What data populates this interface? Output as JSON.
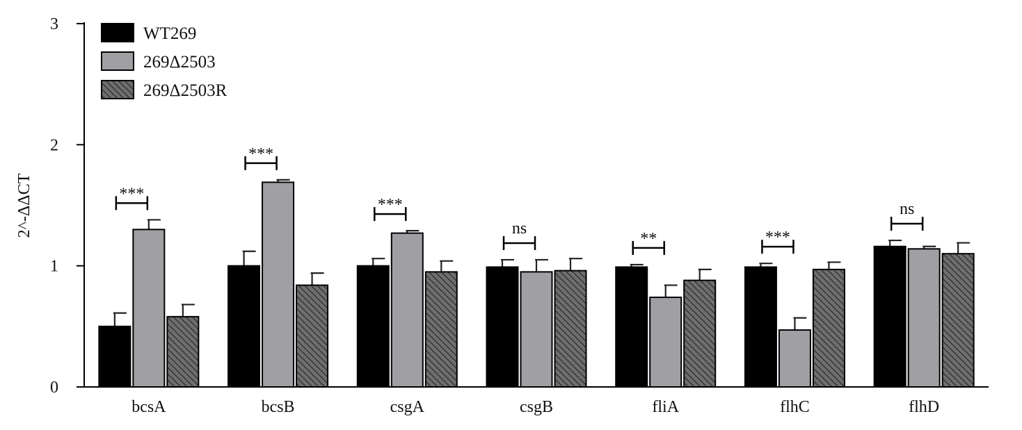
{
  "chart_data": {
    "type": "bar",
    "title": "",
    "xlabel": "",
    "ylabel": "2^-ΔΔCT",
    "ylim": [
      0,
      3
    ],
    "yticks": [
      0,
      1,
      2,
      3
    ],
    "grid": false,
    "legend_position": "top-left",
    "categories": [
      "bcsA",
      "bcsB",
      "csgA",
      "csgB",
      "fliA",
      "flhC",
      "flhD"
    ],
    "series": [
      {
        "name": "WT269",
        "values": [
          0.5,
          1.0,
          1.0,
          0.99,
          0.99,
          0.99,
          1.16
        ],
        "errors": [
          0.11,
          0.12,
          0.06,
          0.06,
          0.02,
          0.03,
          0.05
        ],
        "color": "#000000",
        "pattern": "solid"
      },
      {
        "name": "269Δ2503",
        "values": [
          1.3,
          1.69,
          1.27,
          0.95,
          0.74,
          0.47,
          1.14
        ],
        "errors": [
          0.08,
          0.02,
          0.02,
          0.1,
          0.1,
          0.1,
          0.02
        ],
        "color": "#a0a0a4",
        "pattern": "solid"
      },
      {
        "name": "269Δ2503R",
        "values": [
          0.58,
          0.84,
          0.95,
          0.96,
          0.88,
          0.97,
          1.1
        ],
        "errors": [
          0.1,
          0.1,
          0.09,
          0.1,
          0.09,
          0.06,
          0.09
        ],
        "color": "#6e6e6e",
        "pattern": "hatched"
      }
    ],
    "significance": [
      {
        "category": "bcsA",
        "label": "***"
      },
      {
        "category": "bcsB",
        "label": "***"
      },
      {
        "category": "csgA",
        "label": "***"
      },
      {
        "category": "csgB",
        "label": "ns"
      },
      {
        "category": "fliA",
        "label": "**"
      },
      {
        "category": "flhC",
        "label": "***"
      },
      {
        "category": "flhD",
        "label": "ns"
      }
    ]
  }
}
